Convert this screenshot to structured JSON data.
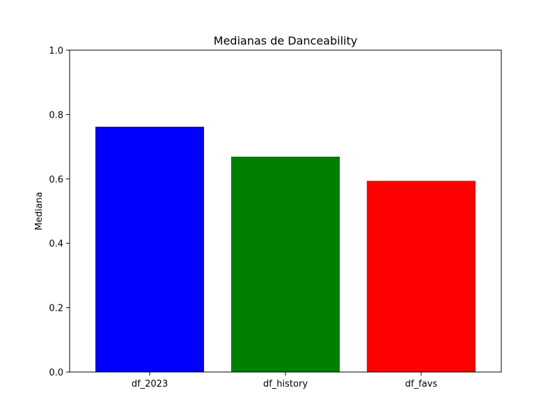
{
  "chart_data": {
    "type": "bar",
    "title": "Medianas de Danceability",
    "xlabel": "",
    "ylabel": "Mediana",
    "categories": [
      "df_2023",
      "df_history",
      "df_favs"
    ],
    "values": [
      0.762,
      0.669,
      0.594
    ],
    "colors": [
      "#0000ff",
      "#008000",
      "#ff0000"
    ],
    "ylim": [
      0,
      1.0
    ],
    "yticks": [
      "0.0",
      "0.2",
      "0.4",
      "0.6",
      "0.8",
      "1.0"
    ],
    "grid": false,
    "legend": false
  }
}
